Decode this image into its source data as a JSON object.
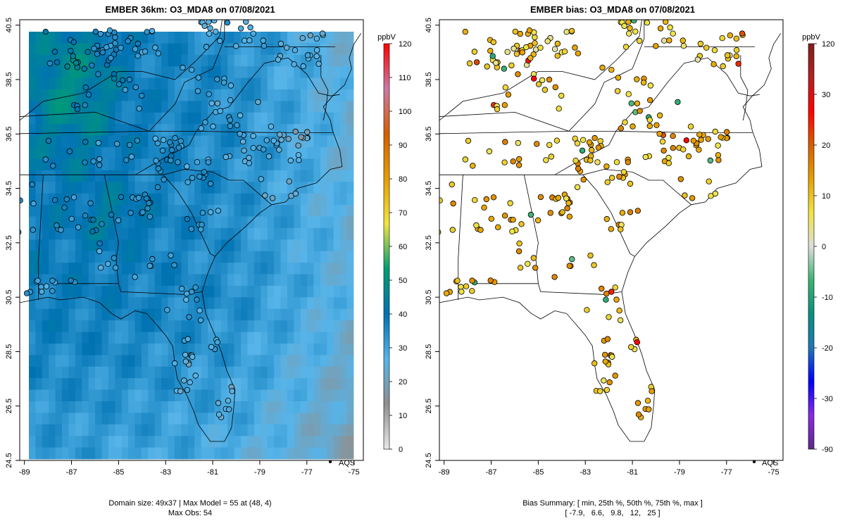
{
  "chart_data": [
    {
      "type": "map-heatmap",
      "title": "EMBER 36km: O3_MDA8 on 07/08/2021",
      "xlim": [
        -89.2,
        -74.6
      ],
      "ylim": [
        24.5,
        40.7
      ],
      "x_ticks": [
        -89,
        -87,
        -85,
        -83,
        -81,
        -79,
        -77,
        -75
      ],
      "y_ticks": [
        24.5,
        26.5,
        28.5,
        30.5,
        32.5,
        34.5,
        36.5,
        38.5,
        40.5
      ],
      "legend": {
        "symbol": "•",
        "label": "AQS"
      },
      "colorbar": {
        "unit": "ppbV",
        "ticks": [
          0,
          10,
          20,
          30,
          40,
          50,
          60,
          70,
          80,
          90,
          100,
          110,
          120
        ],
        "range": [
          0,
          120
        ],
        "colors": [
          "#e8e8e8",
          "#8f8f8f",
          "#56b4e9",
          "#0072b2",
          "#009e73",
          "#f0e442",
          "#e69f00",
          "#d55e00",
          "#cc79a7",
          "#ff0000"
        ]
      },
      "footer": [
        "Domain size: 49x37 | Max Model = 55 at (48, 4)",
        "Max Obs: 54"
      ],
      "stats": {
        "domain_cols": 49,
        "domain_rows": 37,
        "max_model": 55,
        "max_model_cell": [
          48,
          4
        ],
        "max_obs": 54
      }
    },
    {
      "type": "map-scatter",
      "title": "EMBER bias: O3_MDA8 on 07/08/2021",
      "xlim": [
        -89.2,
        -74.6
      ],
      "ylim": [
        24.5,
        40.7
      ],
      "x_ticks": [
        -89,
        -87,
        -85,
        -83,
        -81,
        -79,
        -77,
        -75
      ],
      "y_ticks": [
        24.5,
        26.5,
        28.5,
        30.5,
        32.5,
        34.5,
        36.5,
        38.5,
        40.5
      ],
      "legend": {
        "symbol": "•",
        "label": "AQS"
      },
      "colorbar": {
        "unit": "ppbV",
        "ticks": [
          -90,
          -30,
          -20,
          -10,
          0,
          10,
          20,
          30,
          120
        ],
        "tick_labels": [
          "-90",
          "-30",
          "-20",
          "-10",
          "0",
          "10",
          "20",
          "30",
          "120"
        ],
        "colors": [
          "#5b2a86",
          "#8a2be2",
          "#0000ff",
          "#1f78b4",
          "#0b8f7d",
          "#3cb371",
          "#dddddd",
          "#f0e442",
          "#e69f00",
          "#d55e00",
          "#ff0000",
          "#b22222",
          "#7f1d1d"
        ]
      },
      "footer": [
        "Bias Summary: [ min, 25th %, 50th %, 75th %, max ]",
        "[ -7.9,   6.6,   9.8,   12,   25 ]"
      ],
      "bias_summary": {
        "min": -7.9,
        "p25": 6.6,
        "p50": 9.8,
        "p75": 12,
        "max": 25
      }
    }
  ]
}
